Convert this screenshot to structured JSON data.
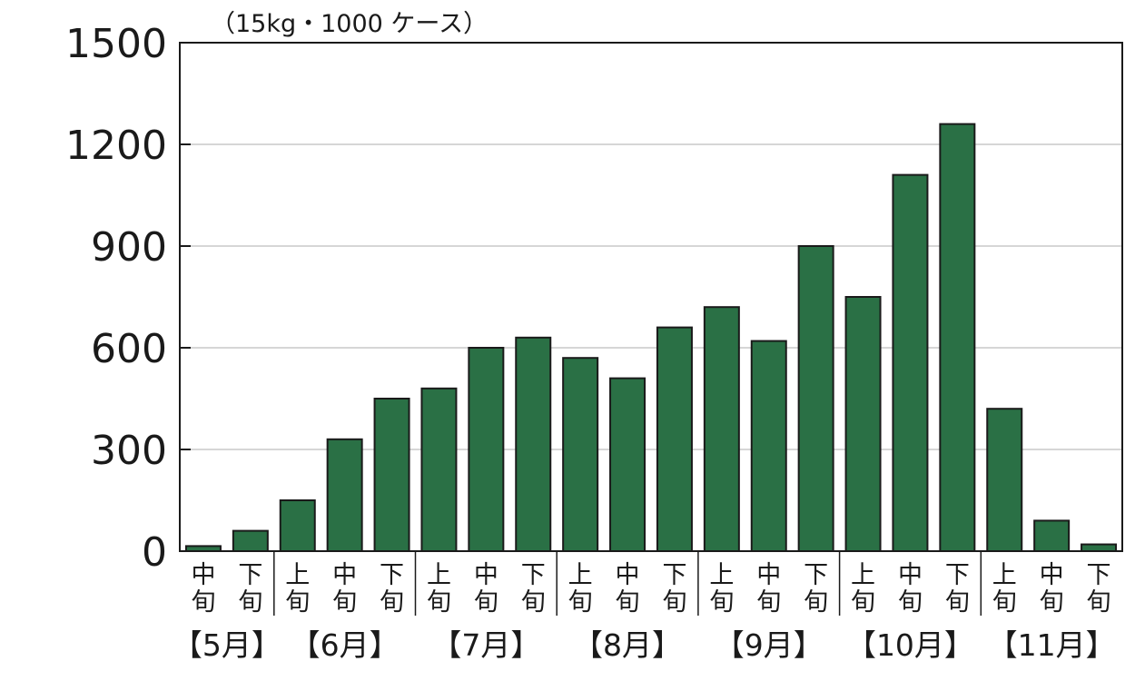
{
  "chart_data": {
    "type": "bar",
    "title": "",
    "xlabel": "",
    "ylabel": "",
    "unit_label": "（15kg・1000 ケース）",
    "ylim": [
      0,
      1500
    ],
    "yticks": [
      "0",
      "300",
      "600",
      "900",
      "1200",
      "1500"
    ],
    "grid": true,
    "bar_color": "#2a7045",
    "categories": [
      {
        "top": "中",
        "bottom": "旬",
        "value": 15
      },
      {
        "top": "下",
        "bottom": "旬",
        "value": 60
      },
      {
        "top": "上",
        "bottom": "旬",
        "value": 150
      },
      {
        "top": "中",
        "bottom": "旬",
        "value": 330
      },
      {
        "top": "下",
        "bottom": "旬",
        "value": 450
      },
      {
        "top": "上",
        "bottom": "旬",
        "value": 480
      },
      {
        "top": "中",
        "bottom": "旬",
        "value": 600
      },
      {
        "top": "下",
        "bottom": "旬",
        "value": 630
      },
      {
        "top": "上",
        "bottom": "旬",
        "value": 570
      },
      {
        "top": "中",
        "bottom": "旬",
        "value": 510
      },
      {
        "top": "下",
        "bottom": "旬",
        "value": 660
      },
      {
        "top": "上",
        "bottom": "旬",
        "value": 720
      },
      {
        "top": "中",
        "bottom": "旬",
        "value": 620
      },
      {
        "top": "下",
        "bottom": "旬",
        "value": 900
      },
      {
        "top": "上",
        "bottom": "旬",
        "value": 750
      },
      {
        "top": "中",
        "bottom": "旬",
        "value": 1110
      },
      {
        "top": "下",
        "bottom": "旬",
        "value": 1260
      },
      {
        "top": "上",
        "bottom": "旬",
        "value": 420
      },
      {
        "top": "中",
        "bottom": "旬",
        "value": 90
      },
      {
        "top": "下",
        "bottom": "旬",
        "value": 20
      }
    ],
    "months": [
      {
        "label": "【5月】",
        "start": 0,
        "count": 2
      },
      {
        "label": "【6月】",
        "start": 2,
        "count": 3
      },
      {
        "label": "【7月】",
        "start": 5,
        "count": 3
      },
      {
        "label": "【8月】",
        "start": 8,
        "count": 3
      },
      {
        "label": "【9月】",
        "start": 11,
        "count": 3
      },
      {
        "label": "【10月】",
        "start": 14,
        "count": 3
      },
      {
        "label": "【11月】",
        "start": 17,
        "count": 3
      }
    ]
  }
}
